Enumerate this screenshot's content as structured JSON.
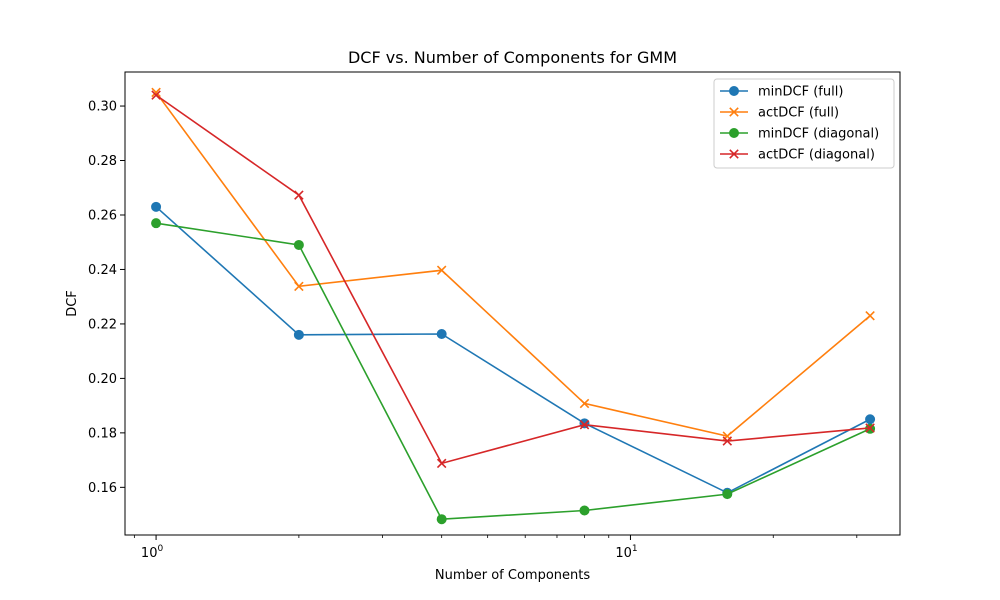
{
  "chart_data": {
    "type": "line",
    "title": "DCF vs. Number of Components for GMM",
    "xlabel": "Number of Components",
    "ylabel": "DCF",
    "xscale": "log",
    "xlim": [
      0.86,
      37
    ],
    "ylim": [
      0.1425,
      0.3125
    ],
    "x": [
      1,
      2,
      4,
      8,
      16,
      32
    ],
    "x_ticks": [
      {
        "value": 1,
        "base": "10",
        "exp": "0"
      },
      {
        "value": 10,
        "base": "10",
        "exp": "1"
      }
    ],
    "y_ticks": [
      0.16,
      0.18,
      0.2,
      0.22,
      0.24,
      0.26,
      0.28,
      0.3
    ],
    "y_tick_labels": [
      "0.16",
      "0.18",
      "0.20",
      "0.22",
      "0.24",
      "0.26",
      "0.28",
      "0.30"
    ],
    "grid": false,
    "legend_position": "top-right",
    "series": [
      {
        "name": "minDCF (full)",
        "color": "#1f77b4",
        "marker": "circle",
        "values": [
          0.263,
          0.216,
          0.2163,
          0.1835,
          0.158,
          0.185
        ]
      },
      {
        "name": "actDCF (full)",
        "color": "#ff7f0e",
        "marker": "x",
        "values": [
          0.305,
          0.2338,
          0.2397,
          0.1908,
          0.1788,
          0.223
        ]
      },
      {
        "name": "minDCF (diagonal)",
        "color": "#2ca02c",
        "marker": "circle",
        "values": [
          0.257,
          0.249,
          0.1483,
          0.1515,
          0.1575,
          0.1815
        ]
      },
      {
        "name": "actDCF (diagonal)",
        "color": "#d62728",
        "marker": "x",
        "values": [
          0.304,
          0.2673,
          0.1688,
          0.183,
          0.177,
          0.1818
        ]
      }
    ]
  }
}
